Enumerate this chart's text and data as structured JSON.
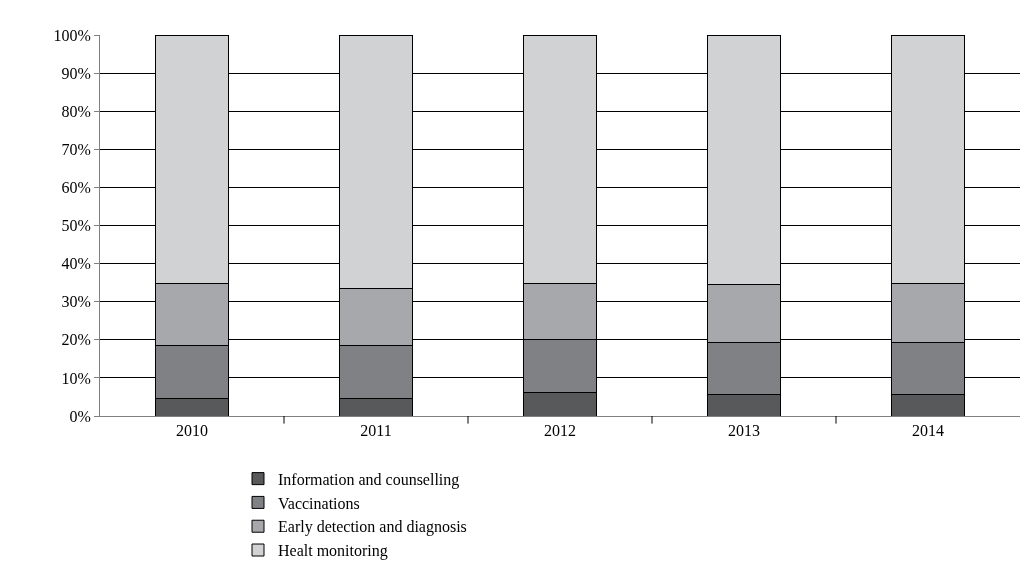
{
  "chart_data": {
    "type": "bar",
    "stacked": true,
    "categories": [
      "2010",
      "2011",
      "2012",
      "2013",
      "2014"
    ],
    "series": [
      {
        "name": "Information and counselling",
        "color": "#58595b",
        "values": [
          4.6,
          4.7,
          6.1,
          5.7,
          5.7
        ]
      },
      {
        "name": "Vaccinations",
        "color": "#808184",
        "values": [
          14.0,
          13.9,
          14.0,
          13.5,
          13.5
        ]
      },
      {
        "name": "Early detection and diagnosis",
        "color": "#a7a8ab",
        "values": [
          16.2,
          14.9,
          14.7,
          15.3,
          15.6
        ]
      },
      {
        "name": "Healt monitoring",
        "color": "#d1d2d4",
        "values": [
          65.2,
          66.5,
          65.2,
          65.5,
          65.2
        ]
      }
    ],
    "ylim": [
      0,
      100
    ],
    "yticks": [
      {
        "value": 0,
        "label": "0%"
      },
      {
        "value": 10,
        "label": "10%"
      },
      {
        "value": 20,
        "label": "20%"
      },
      {
        "value": 30,
        "label": "30%"
      },
      {
        "value": 40,
        "label": "40%"
      },
      {
        "value": 50,
        "label": "50%"
      },
      {
        "value": 60,
        "label": "60%"
      },
      {
        "value": 70,
        "label": "70%"
      },
      {
        "value": 80,
        "label": "80%"
      },
      {
        "value": 90,
        "label": "90%"
      },
      {
        "value": 100,
        "label": "100%"
      }
    ],
    "grid": "y",
    "legend": "bottom"
  }
}
